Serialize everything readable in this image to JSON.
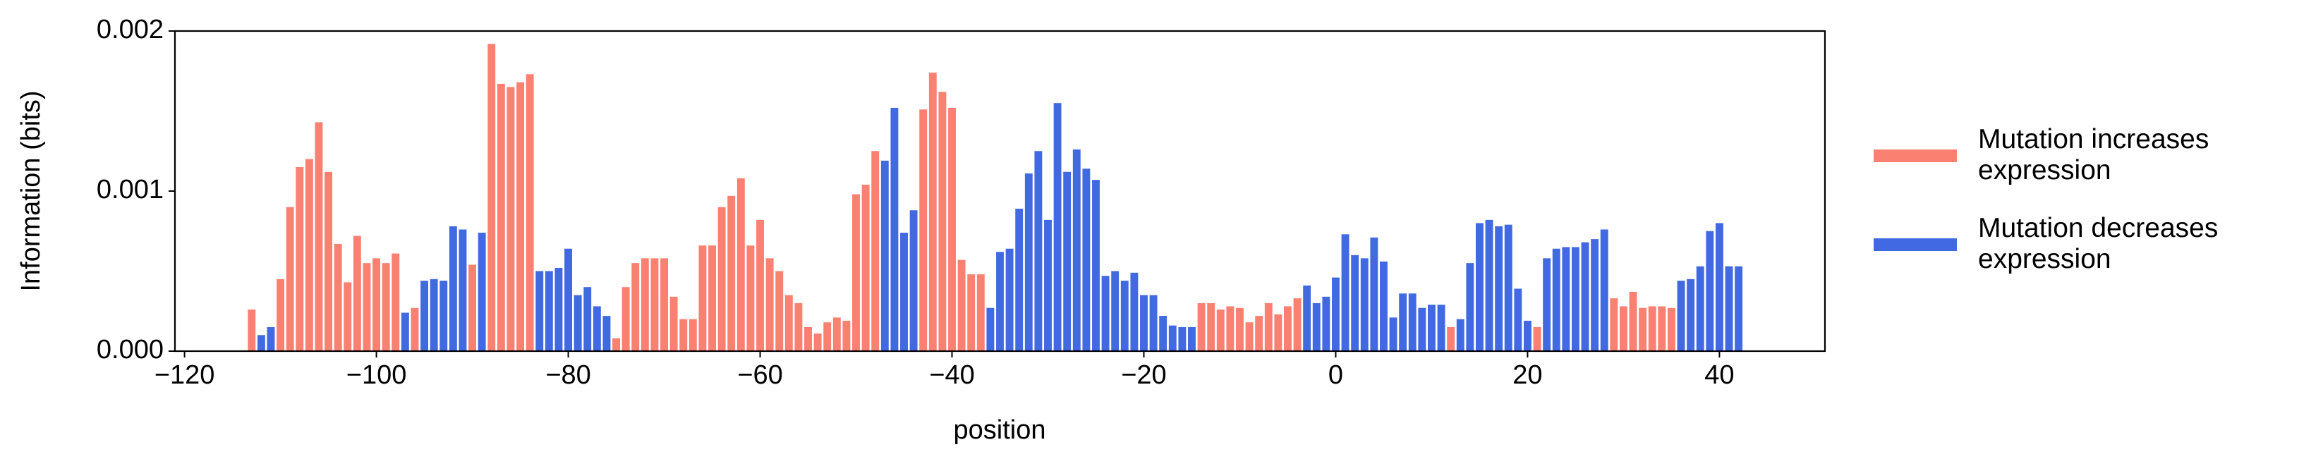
{
  "chart_data": {
    "type": "bar",
    "ylabel": "Information (bits)",
    "xlabel": "position",
    "xlim": [
      -121,
      51
    ],
    "ylim": [
      0,
      0.002
    ],
    "xticks": [
      {
        "value": -120,
        "label": "−120"
      },
      {
        "value": -100,
        "label": "−100"
      },
      {
        "value": -80,
        "label": "−80"
      },
      {
        "value": -60,
        "label": "−60"
      },
      {
        "value": -40,
        "label": "−40"
      },
      {
        "value": -20,
        "label": "−20"
      },
      0,
      20,
      40
    ],
    "yticks": [
      {
        "value": 0,
        "label": "0.000"
      },
      {
        "value": 0.001,
        "label": "0.001"
      },
      {
        "value": 0.002,
        "label": "0.002"
      }
    ],
    "legend": "right",
    "series": [
      {
        "name": "Mutation increases expression",
        "color": "#fa8072",
        "x": [
          -113,
          -110,
          -109,
          -108,
          -107,
          -106,
          -105,
          -104,
          -103,
          -102,
          -101,
          -100,
          -99,
          -98,
          -96,
          -90,
          -88,
          -87,
          -86,
          -85,
          -84,
          -75,
          -74,
          -73,
          -72,
          -71,
          -70,
          -69,
          -68,
          -67,
          -66,
          -65,
          -64,
          -63,
          -62,
          -61,
          -60,
          -59,
          -58,
          -57,
          -56,
          -55,
          -54,
          -53,
          -52,
          -51,
          -50,
          -49,
          -48,
          -43,
          -42,
          -41,
          -40,
          -39,
          -38,
          -37,
          -14,
          -13,
          -12,
          -11,
          -10,
          -9,
          -8,
          -7,
          -6,
          -5,
          -4,
          12,
          21,
          29,
          30,
          31,
          32,
          33,
          34,
          35
        ],
        "values": [
          0.00026,
          0.00045,
          0.0009,
          0.00115,
          0.0012,
          0.00143,
          0.00112,
          0.00067,
          0.00043,
          0.00072,
          0.00055,
          0.00058,
          0.00055,
          0.00061,
          0.00027,
          0.00054,
          0.00192,
          0.00167,
          0.00165,
          0.00168,
          0.00173,
          8e-05,
          0.0004,
          0.00055,
          0.00058,
          0.00058,
          0.00058,
          0.00034,
          0.0002,
          0.0002,
          0.00066,
          0.00066,
          0.0009,
          0.00097,
          0.00108,
          0.00066,
          0.00082,
          0.00058,
          0.0005,
          0.00035,
          0.0003,
          0.00015,
          0.00011,
          0.00018,
          0.00021,
          0.00019,
          0.00098,
          0.00104,
          0.00125,
          0.00151,
          0.00174,
          0.00162,
          0.00152,
          0.00057,
          0.00048,
          0.00048,
          0.0003,
          0.0003,
          0.00026,
          0.00028,
          0.00027,
          0.00018,
          0.00022,
          0.0003,
          0.00023,
          0.00028,
          0.00033,
          0.00015,
          0.00015,
          0.00033,
          0.00028,
          0.00037,
          0.00027,
          0.00028,
          0.00028,
          0.00027
        ]
      },
      {
        "name": "Mutation decreases expression",
        "color": "#4169e1",
        "x": [
          -112,
          -111,
          -97,
          -95,
          -94,
          -93,
          -92,
          -91,
          -89,
          -83,
          -82,
          -81,
          -80,
          -79,
          -78,
          -77,
          -76,
          -47,
          -46,
          -45,
          -44,
          -36,
          -35,
          -34,
          -33,
          -32,
          -31,
          -30,
          -29,
          -28,
          -27,
          -26,
          -25,
          -24,
          -23,
          -22,
          -21,
          -20,
          -19,
          -18,
          -17,
          -16,
          -15,
          -3,
          -2,
          -1,
          0,
          1,
          2,
          3,
          4,
          5,
          6,
          7,
          8,
          9,
          10,
          11,
          13,
          14,
          15,
          16,
          17,
          18,
          19,
          20,
          22,
          23,
          24,
          25,
          26,
          27,
          28,
          36,
          37,
          38,
          39,
          40,
          41,
          42
        ],
        "values": [
          0.0001,
          0.00015,
          0.00024,
          0.00044,
          0.00045,
          0.00044,
          0.00078,
          0.00076,
          0.00074,
          0.0005,
          0.0005,
          0.00052,
          0.00064,
          0.00035,
          0.0004,
          0.00028,
          0.00022,
          0.00119,
          0.00152,
          0.00074,
          0.00088,
          0.00027,
          0.00062,
          0.00064,
          0.00089,
          0.00111,
          0.00125,
          0.00082,
          0.00155,
          0.00112,
          0.00126,
          0.00114,
          0.00107,
          0.00047,
          0.0005,
          0.00044,
          0.00049,
          0.00035,
          0.00035,
          0.00022,
          0.00016,
          0.00015,
          0.00015,
          0.00041,
          0.0003,
          0.00034,
          0.00046,
          0.00073,
          0.0006,
          0.00058,
          0.00071,
          0.00056,
          0.00021,
          0.00036,
          0.00036,
          0.00027,
          0.00029,
          0.00029,
          0.0002,
          0.00055,
          0.0008,
          0.00082,
          0.00078,
          0.00079,
          0.00039,
          0.00019,
          0.00058,
          0.00064,
          0.00065,
          0.00065,
          0.00068,
          0.0007,
          0.00076,
          0.00044,
          0.00045,
          0.00053,
          0.00075,
          0.0008,
          0.00053,
          0.00053
        ]
      }
    ]
  }
}
